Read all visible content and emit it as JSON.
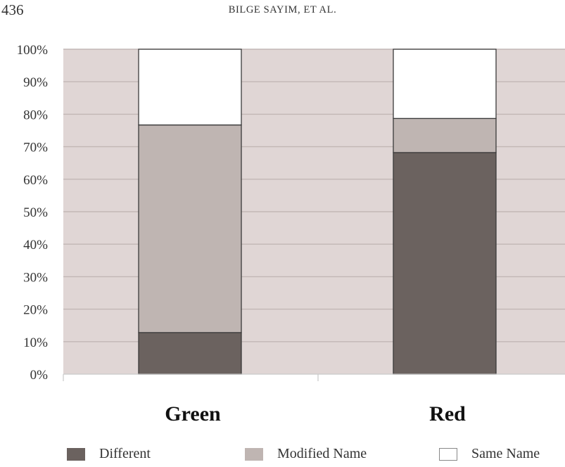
{
  "header": {
    "page_number": "436",
    "running_title": "BILGE SAYIM, ET AL."
  },
  "chart_data": {
    "type": "bar",
    "stacked": true,
    "categories": [
      "Green",
      "Red"
    ],
    "series": [
      {
        "name": "Different",
        "values": [
          12.8,
          68.2
        ],
        "color": "#6b625f"
      },
      {
        "name": "Modified Name",
        "values": [
          63.9,
          10.5
        ],
        "color": "#bfb5b2"
      },
      {
        "name": "Same Name",
        "values": [
          23.3,
          21.3
        ],
        "color": "#ffffff"
      }
    ],
    "ylim": [
      0,
      100
    ],
    "yticks": [
      "0%",
      "10%",
      "20%",
      "30%",
      "40%",
      "50%",
      "60%",
      "70%",
      "80%",
      "90%",
      "100%"
    ],
    "grid": true,
    "legend_position": "bottom",
    "plot_background": "#e0d6d5"
  }
}
